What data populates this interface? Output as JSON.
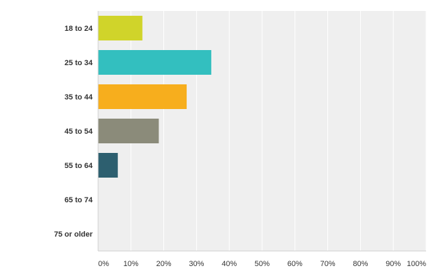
{
  "chart_data": {
    "type": "bar",
    "orientation": "horizontal",
    "categories": [
      "18 to 24",
      "25 to 34",
      "35 to 44",
      "45 to 54",
      "55 to 64",
      "65 to 74",
      "75 or older"
    ],
    "values": [
      13.5,
      34.5,
      27.0,
      18.5,
      6.0,
      0,
      0
    ],
    "value_unit": "percent",
    "colors": [
      "#d0d42a",
      "#33bfbf",
      "#f7ae1d",
      "#8b8b7a",
      "#2d5f6f",
      "#cccccc",
      "#cccccc"
    ],
    "xlim": [
      0,
      100
    ],
    "x_ticks": [
      0,
      10,
      20,
      30,
      40,
      50,
      60,
      70,
      80,
      90,
      100
    ],
    "x_tick_labels": [
      "0%",
      "10%",
      "20%",
      "30%",
      "40%",
      "50%",
      "60%",
      "70%",
      "80%",
      "90%",
      "100%"
    ],
    "grid": true,
    "plot_background": "#efefef",
    "gridline_color": "#ffffff",
    "title": "",
    "xlabel": "",
    "ylabel": ""
  }
}
